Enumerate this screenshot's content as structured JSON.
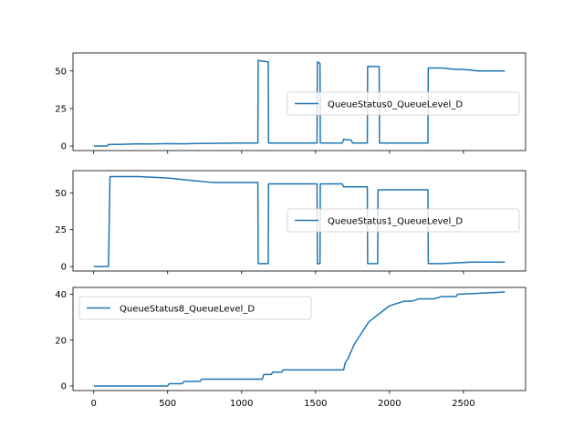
{
  "figure": {
    "background": "#ffffff",
    "line_color": "#1f77b4"
  },
  "chart_data": [
    {
      "type": "line",
      "title": "",
      "xlabel": "",
      "ylabel": "",
      "xlim": [
        -140,
        2920
      ],
      "ylim": [
        -3,
        62
      ],
      "xticks": [
        0,
        500,
        1000,
        1500,
        2000,
        2500
      ],
      "xtick_labels_visible": false,
      "yticks": [
        0,
        25,
        50
      ],
      "ytick_labels": [
        "0",
        "25",
        "50"
      ],
      "grid": false,
      "legend": {
        "entries": [
          "QueueStatus0_QueueLevel_D"
        ],
        "placement": "center-right"
      },
      "series": [
        {
          "name": "QueueStatus0_QueueLevel_D",
          "x": [
            0,
            90,
            100,
            200,
            300,
            400,
            500,
            600,
            700,
            800,
            900,
            1000,
            1100,
            1110,
            1112,
            1180,
            1182,
            1300,
            1400,
            1500,
            1510,
            1512,
            1530,
            1532,
            1600,
            1680,
            1690,
            1740,
            1750,
            1840,
            1850,
            1852,
            1930,
            1932,
            2000,
            2100,
            2200,
            2250,
            2260,
            2262,
            2350,
            2400,
            2450,
            2500,
            2550,
            2600,
            2700,
            2780
          ],
          "y": [
            0,
            0,
            1,
            1.2,
            1.5,
            1.4,
            1.6,
            1.5,
            1.7,
            1.8,
            1.9,
            2,
            2,
            2,
            57,
            56,
            2,
            2,
            2,
            2,
            2,
            56,
            55,
            2,
            2,
            2,
            4.5,
            4,
            2,
            2,
            2,
            53,
            53,
            2,
            2,
            2,
            2,
            2,
            2,
            52,
            52,
            51.5,
            51,
            51,
            50.5,
            50,
            50,
            50
          ]
        }
      ]
    },
    {
      "type": "line",
      "title": "",
      "xlabel": "",
      "ylabel": "",
      "xlim": [
        -140,
        2920
      ],
      "ylim": [
        -3,
        65
      ],
      "xticks": [
        0,
        500,
        1000,
        1500,
        2000,
        2500
      ],
      "xtick_labels_visible": false,
      "yticks": [
        0,
        25,
        50
      ],
      "ytick_labels": [
        "0",
        "25",
        "50"
      ],
      "grid": false,
      "legend": {
        "entries": [
          "QueueStatus1_QueueLevel_D"
        ],
        "placement": "center-right"
      },
      "series": [
        {
          "name": "QueueStatus1_QueueLevel_D",
          "x": [
            0,
            100,
            110,
            200,
            300,
            400,
            500,
            600,
            700,
            800,
            900,
            1000,
            1100,
            1110,
            1112,
            1180,
            1182,
            1300,
            1400,
            1500,
            1510,
            1512,
            1530,
            1532,
            1600,
            1680,
            1690,
            1740,
            1750,
            1840,
            1850,
            1852,
            1920,
            1922,
            2000,
            2100,
            2200,
            2250,
            2260,
            2262,
            2350,
            2450,
            2550,
            2650,
            2780
          ],
          "y": [
            0,
            0,
            61,
            61,
            61,
            60.5,
            60,
            59,
            58,
            57,
            57,
            57,
            57,
            57,
            2,
            2,
            56,
            56,
            56,
            56,
            56,
            2,
            2,
            56,
            56,
            56,
            54,
            54,
            54,
            54,
            54,
            2,
            2,
            52,
            52,
            52,
            52,
            52,
            52,
            2,
            2,
            2.5,
            3,
            3,
            3
          ]
        }
      ]
    },
    {
      "type": "line",
      "title": "",
      "xlabel": "",
      "ylabel": "",
      "xlim": [
        -140,
        2920
      ],
      "ylim": [
        -2,
        43
      ],
      "xticks": [
        0,
        500,
        1000,
        1500,
        2000,
        2500
      ],
      "xtick_labels": [
        "0",
        "500",
        "1000",
        "1500",
        "2000",
        "2500"
      ],
      "yticks": [
        0,
        20,
        40
      ],
      "ytick_labels": [
        "0",
        "20",
        "40"
      ],
      "grid": false,
      "legend": {
        "entries": [
          "QueueStatus8_QueueLevel_D"
        ],
        "placement": "upper-left"
      },
      "series": [
        {
          "name": "QueueStatus8_QueueLevel_D",
          "x": [
            0,
            500,
            510,
            600,
            610,
            720,
            730,
            1140,
            1150,
            1200,
            1210,
            1270,
            1280,
            1690,
            1700,
            1720,
            1740,
            1760,
            1780,
            1800,
            1820,
            1840,
            1860,
            1880,
            1900,
            1920,
            1940,
            1960,
            1980,
            2000,
            2050,
            2100,
            2150,
            2200,
            2250,
            2300,
            2350,
            2450,
            2460,
            2780
          ],
          "y": [
            0,
            0,
            1,
            1,
            2,
            2,
            3,
            3,
            5,
            5,
            6,
            6,
            7,
            7,
            10,
            12,
            15,
            18,
            20,
            22,
            24,
            26,
            28,
            29,
            30,
            31,
            32,
            33,
            34,
            35,
            36,
            37,
            37,
            38,
            38,
            38,
            39,
            39,
            40,
            41
          ]
        }
      ]
    }
  ]
}
